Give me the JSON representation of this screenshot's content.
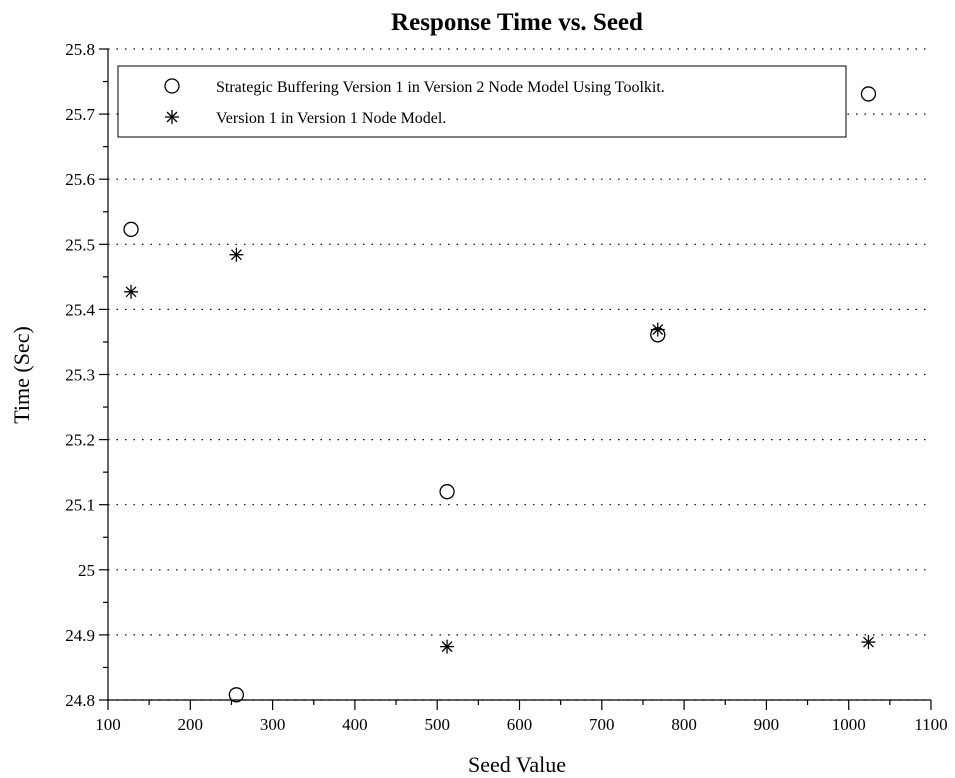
{
  "chart_data": {
    "type": "scatter",
    "title": "Response Time vs. Seed",
    "xlabel": "Seed Value",
    "ylabel": "Time (Sec)",
    "xlim": [
      100,
      1100
    ],
    "ylim": [
      24.8,
      25.8
    ],
    "x_ticks": [
      "100",
      "200",
      "300",
      "400",
      "500",
      "600",
      "700",
      "800",
      "900",
      "1000",
      "1100"
    ],
    "y_ticks": [
      "24.8",
      "24.9",
      "25",
      "25.1",
      "25.2",
      "25.3",
      "25.4",
      "25.5",
      "25.6",
      "25.7",
      "25.8"
    ],
    "grid": "horizontal-dotted",
    "legend_position": "top",
    "series": [
      {
        "name": "Strategic Buffering Version 1 in Version 2 Node Model Using Toolkit.",
        "marker": "circle",
        "x": [
          128,
          256,
          512,
          768,
          1024
        ],
        "y": [
          25.523,
          24.808,
          25.12,
          25.361,
          25.731
        ]
      },
      {
        "name": "Version 1 in Version 1 Node Model.",
        "marker": "asterisk",
        "x": [
          128,
          256,
          512,
          768,
          1024
        ],
        "y": [
          25.427,
          25.484,
          24.882,
          25.369,
          24.889
        ]
      }
    ]
  }
}
